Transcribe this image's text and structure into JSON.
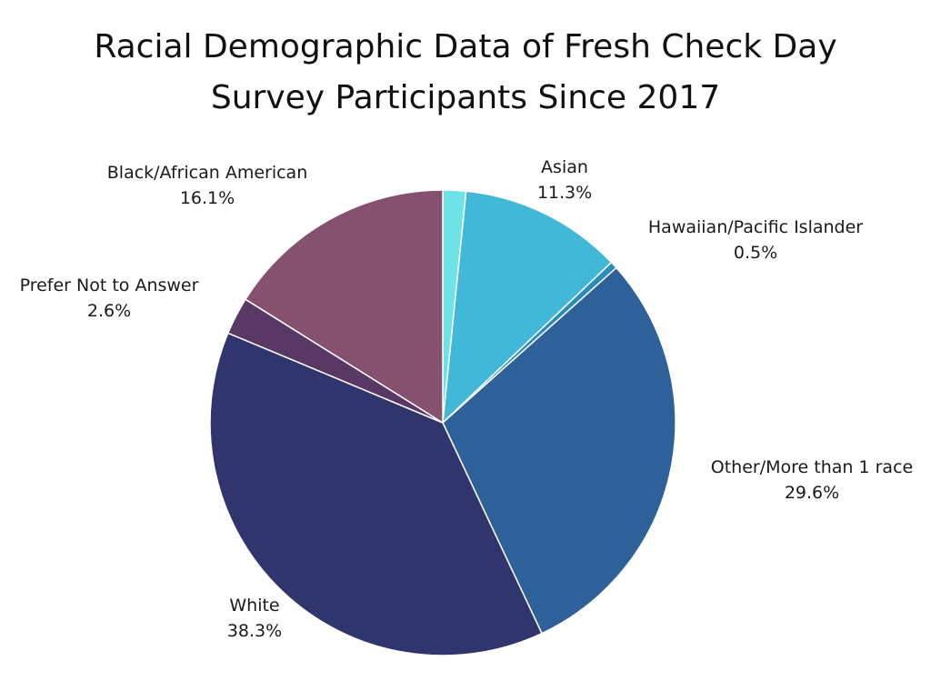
{
  "chart_data": {
    "type": "pie",
    "title_lines": [
      "Racial Demographic Data of Fresh Check Day",
      "Survey Participants Since 2017"
    ],
    "slices": [
      {
        "label": "",
        "value": 1.6,
        "color": "#6ee3e6",
        "display_value": ""
      },
      {
        "label": "Asian",
        "value": 11.3,
        "color": "#42b8d8",
        "display_value": "11.3%"
      },
      {
        "label": "Hawaiian/Pacific Islander",
        "value": 0.5,
        "color": "#2c8bbd",
        "display_value": "0.5%"
      },
      {
        "label": "Other/More than 1 race",
        "value": 29.6,
        "color": "#2e6199",
        "display_value": "29.6%"
      },
      {
        "label": "White",
        "value": 38.3,
        "color": "#31356d",
        "display_value": "38.3%"
      },
      {
        "label": "Prefer Not to Answer",
        "value": 2.6,
        "color": "#5a3866",
        "display_value": "2.6%"
      },
      {
        "label": "Black/African American",
        "value": 16.1,
        "color": "#85516f",
        "display_value": "16.1%"
      }
    ],
    "start_angle": "12 o'clock",
    "direction": "clockwise",
    "legend": "none"
  }
}
